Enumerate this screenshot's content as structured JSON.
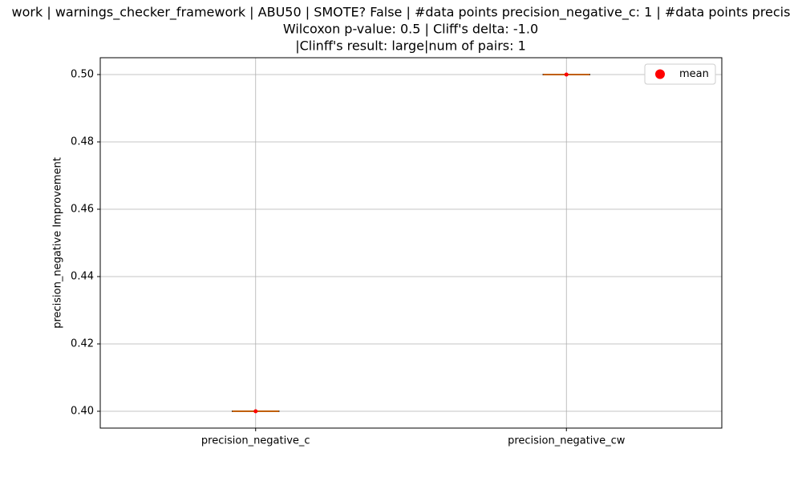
{
  "chart_data": {
    "type": "box",
    "title": [
      "work | warnings_checker_framework | ABU50 | SMOTE? False | #data points precision_negative_c: 1 | #data points precis",
      "Wilcoxon p-value: 0.5 | Cliff's delta: -1.0",
      "|Clinff's result: large|num of pairs: 1"
    ],
    "ylabel": "precision_negative Improvement",
    "categories": [
      "precision_negative_c",
      "precision_negative_cw"
    ],
    "values": [
      0.4,
      0.5
    ],
    "means": [
      0.4,
      0.5
    ],
    "median_color": "#ff7f0e",
    "mean_color": "#ff0000",
    "mean_label": "mean",
    "ylim": [
      0.395,
      0.505
    ],
    "yticks": [
      {
        "value": 0.4,
        "label": "0.40"
      },
      {
        "value": 0.42,
        "label": "0.42"
      },
      {
        "value": 0.44,
        "label": "0.44"
      },
      {
        "value": 0.46,
        "label": "0.46"
      },
      {
        "value": 0.48,
        "label": "0.48"
      },
      {
        "value": 0.5,
        "label": "0.50"
      }
    ],
    "grid": true,
    "legend": "upper right"
  }
}
